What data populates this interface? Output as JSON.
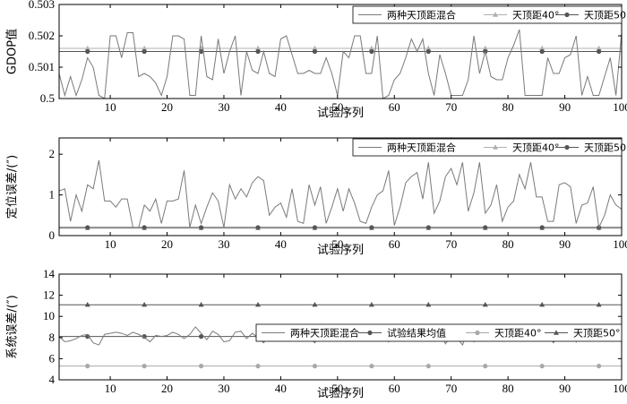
{
  "chart_data": [
    {
      "type": "line",
      "ylabel": "GDOP值",
      "xlabel": "试验序列",
      "xlim": [
        1,
        100
      ],
      "ylim": [
        0.5,
        0.503
      ],
      "xticks": [
        10,
        20,
        30,
        40,
        50,
        60,
        70,
        80,
        90,
        100
      ],
      "yticks": [
        0.5,
        0.501,
        0.502,
        0.503
      ],
      "ytick_labels": [
        "0.5",
        "0.501",
        "0.502",
        "0.503"
      ],
      "legend_position": "top-right",
      "series": [
        {
          "name": "两种天顶距混合",
          "color": "#7a7a7a",
          "marker": "none",
          "values": [
            0.5008,
            0.5001,
            0.5007,
            0.5001,
            0.5006,
            0.5013,
            0.501,
            0.5001,
            0.5,
            0.502,
            0.502,
            0.5013,
            0.5021,
            0.5021,
            0.5007,
            0.5008,
            0.5007,
            0.5005,
            0.5001,
            0.5007,
            0.502,
            0.502,
            0.5019,
            0.5001,
            0.5001,
            0.502,
            0.5007,
            0.5006,
            0.5019,
            0.5008,
            0.5015,
            0.502,
            0.5001,
            0.5015,
            0.5009,
            0.5008,
            0.5015,
            0.5008,
            0.5007,
            0.5019,
            0.502,
            0.5014,
            0.5008,
            0.5008,
            0.5009,
            0.5008,
            0.5008,
            0.5013,
            0.5008,
            0.5001,
            0.5015,
            0.5013,
            0.502,
            0.502,
            0.5008,
            0.5008,
            0.502,
            0.5,
            0.5001,
            0.5006,
            0.5008,
            0.5013,
            0.5019,
            0.5015,
            0.5019,
            0.5008,
            0.5001,
            0.5014,
            0.5008,
            0.5001,
            0.5001,
            0.5001,
            0.5006,
            0.502,
            0.5008,
            0.5015,
            0.5007,
            0.5006,
            0.5006,
            0.5013,
            0.5017,
            0.5022,
            0.5001,
            0.5001,
            0.5001,
            0.5001,
            0.5013,
            0.5008,
            0.5008,
            0.5013,
            0.5014,
            0.502,
            0.5001,
            0.5007,
            0.5001,
            0.5001,
            0.5007,
            0.5013,
            0.5001,
            0.5021
          ]
        },
        {
          "name": "天顶距40°",
          "color": "#b0b0b0",
          "marker": "triangle",
          "constant": 0.5016
        },
        {
          "name": "天顶距50°",
          "color": "#555555",
          "marker": "circle",
          "constant": 0.5015
        }
      ]
    },
    {
      "type": "line",
      "ylabel": "定位误差/(″)",
      "xlabel": "试验序列",
      "xlim": [
        1,
        100
      ],
      "ylim": [
        0,
        2.4
      ],
      "xticks": [
        10,
        20,
        30,
        40,
        50,
        60,
        70,
        80,
        90,
        100
      ],
      "yticks": [
        0,
        1,
        2
      ],
      "ytick_labels": [
        "0",
        "1",
        "2"
      ],
      "legend_position": "top-right",
      "series": [
        {
          "name": "两种天顶距混合",
          "color": "#7a7a7a",
          "marker": "none",
          "values": [
            1.1,
            1.15,
            0.35,
            1.0,
            0.6,
            1.25,
            1.15,
            1.85,
            0.85,
            0.85,
            0.7,
            0.9,
            0.9,
            0.2,
            0.2,
            0.75,
            0.6,
            0.9,
            0.3,
            0.85,
            0.85,
            0.9,
            1.6,
            0.2,
            0.75,
            0.3,
            0.7,
            1.05,
            0.85,
            0.2,
            1.25,
            0.9,
            1.15,
            0.95,
            1.3,
            1.45,
            1.35,
            0.5,
            0.7,
            0.8,
            0.45,
            1.15,
            0.35,
            0.3,
            1.25,
            0.75,
            1.2,
            0.3,
            0.7,
            1.15,
            0.6,
            1.15,
            0.8,
            0.35,
            0.3,
            0.7,
            1.0,
            1.1,
            1.6,
            0.25,
            0.7,
            1.3,
            1.45,
            1.55,
            0.9,
            1.8,
            0.55,
            0.85,
            1.45,
            1.65,
            1.25,
            1.8,
            0.6,
            1.05,
            1.8,
            0.55,
            0.75,
            1.25,
            0.35,
            0.7,
            0.85,
            1.5,
            1.15,
            1.8,
            0.95,
            0.95,
            0.35,
            0.35,
            1.25,
            1.3,
            1.2,
            0.3,
            0.75,
            0.8,
            1.2,
            0.2,
            0.5,
            1.0,
            0.75,
            0.65
          ]
        },
        {
          "name": "天顶距40°",
          "color": "#b0b0b0",
          "marker": "triangle",
          "constant": 0.18
        },
        {
          "name": "天顶距50°",
          "color": "#555555",
          "marker": "circle",
          "constant": 0.2
        }
      ]
    },
    {
      "type": "line",
      "ylabel": "系统误差/(″)",
      "xlabel": "试验序列",
      "xlim": [
        1,
        100
      ],
      "ylim": [
        4,
        14
      ],
      "xticks": [
        10,
        20,
        30,
        40,
        50,
        60,
        70,
        80,
        90,
        100
      ],
      "yticks": [
        4,
        6,
        8,
        10,
        12,
        14
      ],
      "ytick_labels": [
        "4",
        "6",
        "8",
        "10",
        "12",
        "14"
      ],
      "legend_position": "top-right",
      "series": [
        {
          "name": "两种天顶距混合",
          "color": "#7a7a7a",
          "marker": "none",
          "values": [
            8.1,
            7.6,
            7.7,
            7.9,
            8.2,
            8.3,
            7.5,
            7.3,
            8.3,
            8.4,
            8.5,
            8.4,
            8.2,
            8.5,
            8.3,
            8.0,
            7.6,
            8.2,
            8.1,
            8.2,
            8.5,
            8.3,
            7.9,
            8.3,
            9.0,
            8.4,
            7.8,
            8.6,
            8.3,
            7.6,
            7.7,
            8.5,
            8.6,
            7.9,
            8.4,
            8.0,
            7.5,
            8.3,
            8.2,
            8.4,
            7.7,
            8.3,
            7.8,
            8.6,
            8.0,
            7.5,
            8.4,
            8.3,
            7.8,
            8.4,
            8.1,
            8.9,
            8.1,
            8.2,
            8.0,
            8.5,
            8.0,
            8.1,
            7.6,
            8.6,
            7.8,
            8.6,
            8.2,
            7.7,
            8.3,
            8.5,
            7.7,
            8.7,
            7.4,
            8.2,
            8.0,
            7.3,
            8.7,
            7.6,
            8.6,
            8.0,
            8.6,
            7.9,
            8.5,
            8.8,
            8.0,
            8.4,
            7.7,
            8.3,
            8.1,
            8.0,
            8.3,
            7.5,
            8.4,
            8.1,
            8.8,
            7.6,
            8.5,
            8.2,
            7.8,
            8.7,
            7.8,
            8.3,
            8.7,
            8.4
          ]
        },
        {
          "name": "试验结果均值",
          "color": "#555555",
          "marker": "circle",
          "constant": 8.1
        },
        {
          "name": "天顶距40°",
          "color": "#a8a8a8",
          "marker": "circle",
          "constant": 5.3
        },
        {
          "name": "天顶距50°",
          "color": "#555555",
          "marker": "triangle",
          "constant": 11.1
        }
      ]
    }
  ]
}
